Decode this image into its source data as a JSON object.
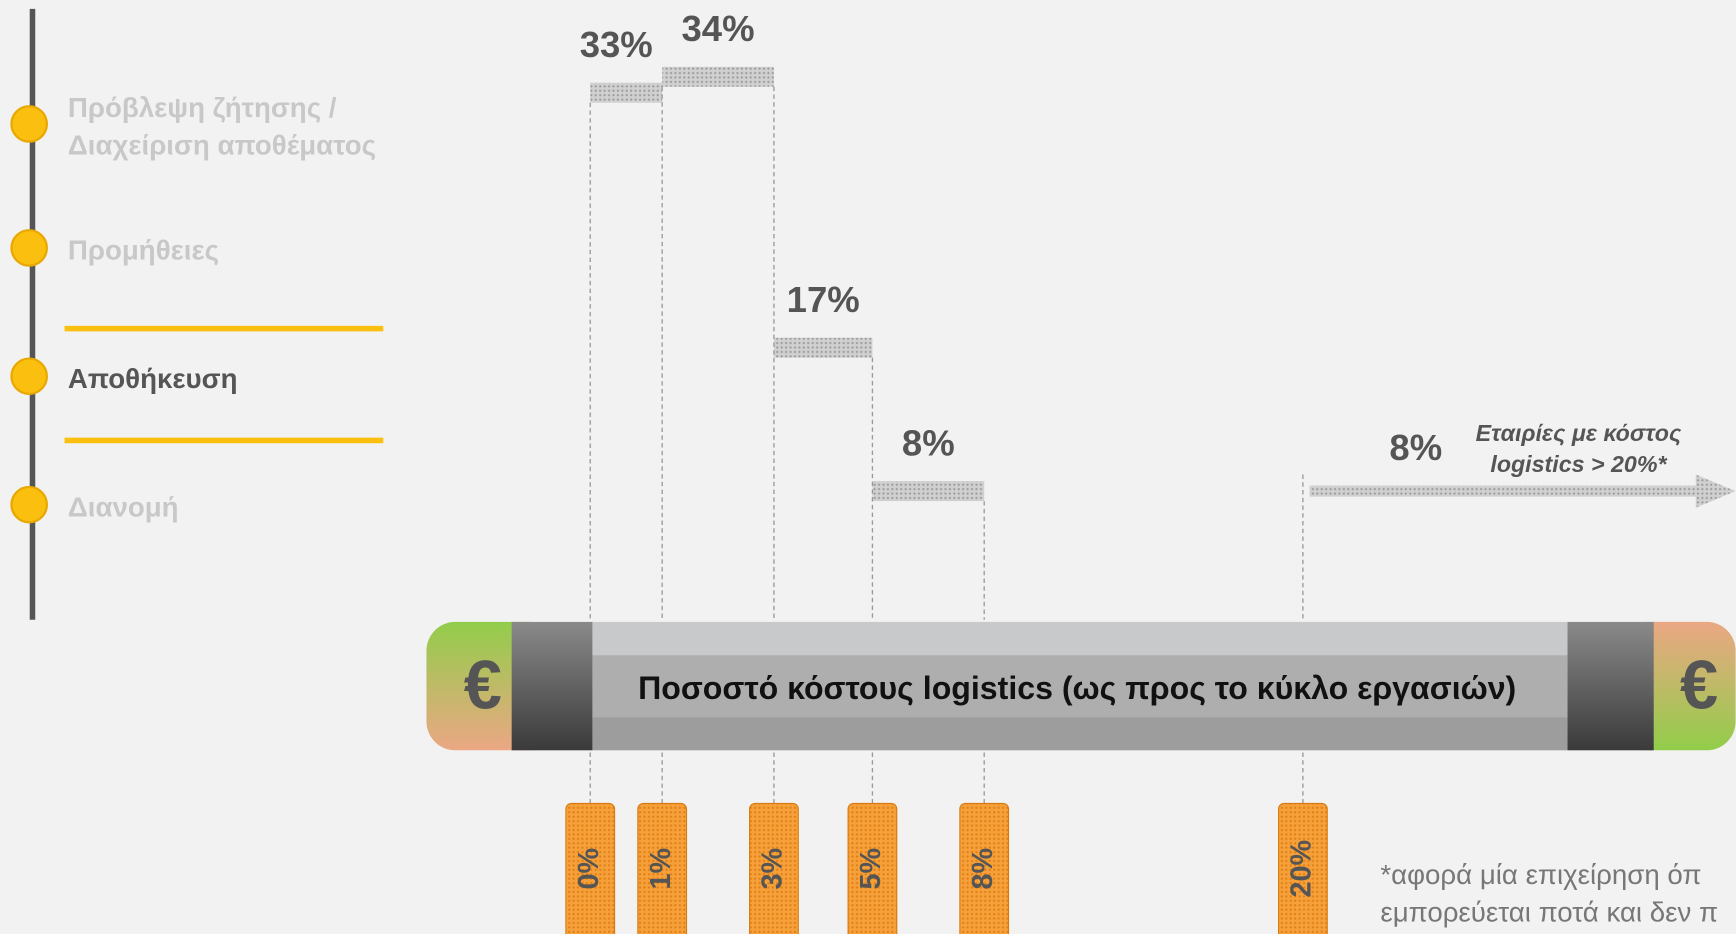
{
  "sidebar": {
    "items": [
      {
        "lines": [
          "Πρόβλεψη ζήτησης /",
          "Διαχείριση αποθέματος"
        ]
      },
      {
        "lines": [
          "Προμήθειες"
        ]
      },
      {
        "lines": [
          "Αποθήκευση"
        ]
      },
      {
        "lines": [
          "Διανομή"
        ]
      }
    ],
    "active": 2
  },
  "chart_data": {
    "type": "bar",
    "xlabel": "Ποσοστό κόστους logistics (ως προς το κύκλο εργασιών)",
    "xticks": [
      {
        "value": 0,
        "label": "0%"
      },
      {
        "value": 1,
        "label": "1%"
      },
      {
        "value": 3,
        "label": "3%"
      },
      {
        "value": 5,
        "label": "5%"
      },
      {
        "value": 8,
        "label": "8%"
      },
      {
        "value": 20,
        "label": "20%"
      }
    ],
    "values": [
      33,
      34,
      17,
      8,
      null,
      8
    ],
    "value_labels": [
      "33%",
      "34%",
      "17%",
      "8%",
      null,
      "8%"
    ],
    "annotation": [
      "Εταιρίες με κόστος",
      "logistics > 20%*"
    ],
    "currency_symbol": "€",
    "color": "#bdbdbd",
    "tick_color": "#f39a2d"
  },
  "footnote": [
    "*αφορά μία επιχείρηση όπ",
    "εμπορεύεται ποτά και δεν π"
  ]
}
